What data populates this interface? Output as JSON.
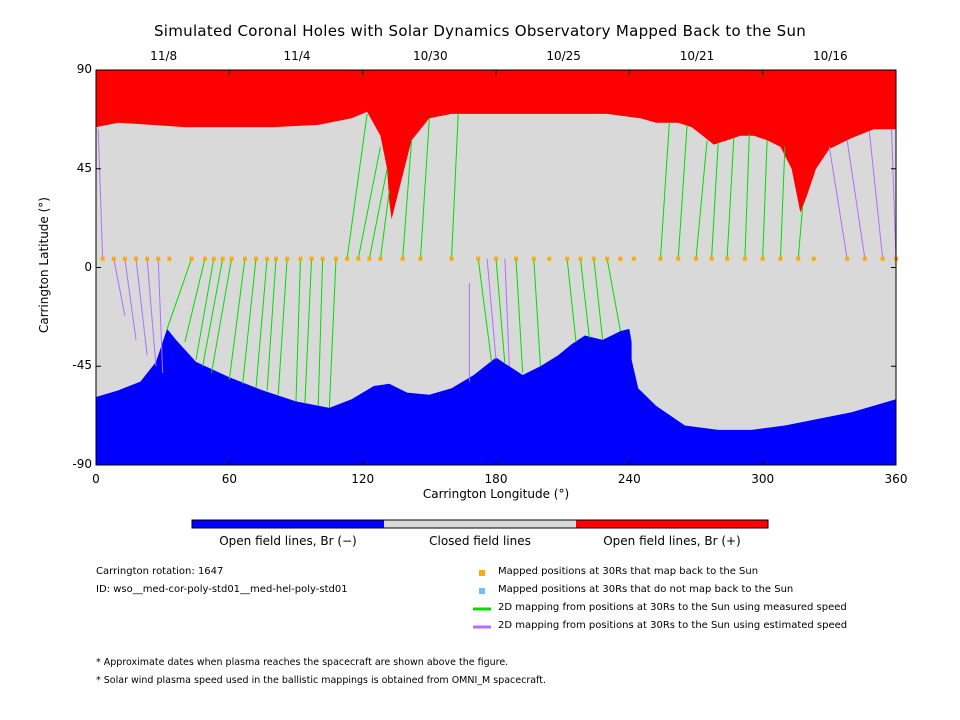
{
  "chart_data": {
    "type": "heatmap",
    "title": "Simulated Coronal Holes with Solar Dynamics Observatory Mapped Back to the Sun",
    "xlabel": "Carrington Longitude (°)",
    "ylabel": "Carrington Latitude (°)",
    "xlim": [
      0,
      360
    ],
    "ylim": [
      -90,
      90
    ],
    "x_ticks": [
      "0",
      "60",
      "120",
      "180",
      "240",
      "300",
      "360"
    ],
    "y_ticks": [
      "90",
      "45",
      "0",
      "-45",
      "-90"
    ],
    "top_axis": {
      "ticks": [
        {
          "label": "11/8",
          "lon": 30
        },
        {
          "label": "11/4",
          "lon": 90
        },
        {
          "label": "10/30",
          "lon": 150
        },
        {
          "label": "10/25",
          "lon": 210
        },
        {
          "label": "10/21",
          "lon": 270
        },
        {
          "label": "10/16",
          "lon": 330
        }
      ]
    },
    "colors": {
      "open_negative": "#0000ff",
      "closed": "#d9d9d9",
      "open_positive": "#ff0000",
      "measured_speed": "#00dd00",
      "estimated_speed": "#b070ff",
      "mapped_marker": "#ffaa00",
      "unmapped_marker": "#77bbff"
    },
    "north_boundary": [
      [
        0,
        64
      ],
      [
        10,
        66
      ],
      [
        25,
        65
      ],
      [
        40,
        64
      ],
      [
        60,
        64
      ],
      [
        80,
        64
      ],
      [
        100,
        65
      ],
      [
        115,
        68
      ],
      [
        122,
        71
      ],
      [
        128,
        60
      ],
      [
        131,
        45
      ],
      [
        132,
        30
      ],
      [
        133,
        22
      ],
      [
        137,
        38
      ],
      [
        142,
        58
      ],
      [
        150,
        68
      ],
      [
        160,
        70
      ],
      [
        172,
        70
      ],
      [
        185,
        70
      ],
      [
        200,
        70
      ],
      [
        215,
        70
      ],
      [
        230,
        70
      ],
      [
        245,
        68
      ],
      [
        252,
        66
      ],
      [
        262,
        66
      ],
      [
        268,
        64
      ],
      [
        273,
        60
      ],
      [
        278,
        56
      ],
      [
        284,
        58
      ],
      [
        290,
        60
      ],
      [
        296,
        60
      ],
      [
        302,
        58
      ],
      [
        308,
        55
      ],
      [
        313,
        45
      ],
      [
        316,
        30
      ],
      [
        317,
        25
      ],
      [
        320,
        33
      ],
      [
        324,
        45
      ],
      [
        330,
        54
      ],
      [
        340,
        59
      ],
      [
        350,
        63
      ],
      [
        360,
        63
      ]
    ],
    "south_boundary": [
      [
        0,
        -59
      ],
      [
        10,
        -56
      ],
      [
        20,
        -52
      ],
      [
        27,
        -43
      ],
      [
        32,
        -28
      ],
      [
        36,
        -33
      ],
      [
        45,
        -43
      ],
      [
        60,
        -50
      ],
      [
        75,
        -56
      ],
      [
        90,
        -61
      ],
      [
        105,
        -64
      ],
      [
        115,
        -60
      ],
      [
        125,
        -54
      ],
      [
        132,
        -53
      ],
      [
        140,
        -57
      ],
      [
        150,
        -58
      ],
      [
        160,
        -55
      ],
      [
        170,
        -49
      ],
      [
        180,
        -41
      ],
      [
        186,
        -45
      ],
      [
        192,
        -49
      ],
      [
        200,
        -45
      ],
      [
        208,
        -40
      ],
      [
        214,
        -35
      ],
      [
        220,
        -31
      ],
      [
        228,
        -33
      ],
      [
        236,
        -29
      ],
      [
        240,
        -28
      ],
      [
        241,
        -34
      ],
      [
        241,
        -42
      ],
      [
        244,
        -55
      ],
      [
        252,
        -63
      ],
      [
        265,
        -72
      ],
      [
        280,
        -74
      ],
      [
        295,
        -74
      ],
      [
        310,
        -72
      ],
      [
        325,
        -69
      ],
      [
        340,
        -66
      ],
      [
        350,
        -63
      ],
      [
        360,
        -60
      ]
    ],
    "mapped_points": {
      "lons": [
        3,
        8,
        13,
        18,
        23,
        28,
        33,
        43,
        49,
        53,
        57,
        61,
        67,
        72,
        77,
        81,
        86,
        92,
        97,
        102,
        108,
        113,
        118,
        123,
        128,
        138,
        146,
        160,
        172,
        180,
        189,
        197,
        204,
        212,
        218,
        224,
        230,
        236,
        242,
        254,
        262,
        270,
        277,
        284,
        292,
        300,
        308,
        316,
        323,
        338,
        346,
        354,
        360
      ],
      "lat": 4
    },
    "measured_mappings": [
      [
        43,
        4,
        32,
        -28
      ],
      [
        49,
        4,
        40,
        -34
      ],
      [
        53,
        4,
        45,
        -42
      ],
      [
        57,
        4,
        48,
        -45
      ],
      [
        61,
        4,
        52,
        -48
      ],
      [
        67,
        4,
        60,
        -51
      ],
      [
        72,
        4,
        66,
        -53
      ],
      [
        77,
        4,
        72,
        -55
      ],
      [
        81,
        4,
        77,
        -56
      ],
      [
        86,
        4,
        82,
        -58
      ],
      [
        92,
        4,
        90,
        -61
      ],
      [
        97,
        4,
        94,
        -62
      ],
      [
        102,
        4,
        100,
        -63
      ],
      [
        108,
        4,
        105,
        -64
      ],
      [
        113,
        4,
        122,
        70
      ],
      [
        118,
        4,
        128,
        55
      ],
      [
        123,
        4,
        131,
        45
      ],
      [
        128,
        4,
        132,
        35
      ],
      [
        138,
        4,
        142,
        58
      ],
      [
        146,
        4,
        150,
        68
      ],
      [
        160,
        4,
        163,
        70
      ],
      [
        172,
        4,
        178,
        -43
      ],
      [
        180,
        4,
        184,
        -44
      ],
      [
        189,
        4,
        192,
        -48
      ],
      [
        197,
        4,
        200,
        -45
      ],
      [
        212,
        4,
        216,
        -34
      ],
      [
        218,
        4,
        222,
        -32
      ],
      [
        224,
        4,
        228,
        -33
      ],
      [
        230,
        4,
        236,
        -29
      ],
      [
        254,
        4,
        258,
        66
      ],
      [
        262,
        4,
        266,
        65
      ],
      [
        270,
        4,
        275,
        58
      ],
      [
        277,
        4,
        280,
        57
      ],
      [
        284,
        4,
        287,
        59
      ],
      [
        292,
        4,
        294,
        61
      ],
      [
        300,
        4,
        302,
        58
      ],
      [
        308,
        4,
        310,
        55
      ],
      [
        316,
        4,
        318,
        28
      ]
    ],
    "estimated_mappings": [
      [
        3,
        4,
        1,
        63
      ],
      [
        8,
        4,
        13,
        -22
      ],
      [
        13,
        4,
        18,
        -33
      ],
      [
        18,
        4,
        23,
        -40
      ],
      [
        23,
        4,
        27,
        -45
      ],
      [
        28,
        4,
        30,
        -48
      ],
      [
        168,
        -7,
        168,
        -52
      ],
      [
        176,
        4,
        180,
        -42
      ],
      [
        184,
        4,
        186,
        -45
      ],
      [
        338,
        4,
        330,
        55
      ],
      [
        346,
        4,
        338,
        58
      ],
      [
        354,
        4,
        348,
        62
      ],
      [
        360,
        4,
        358,
        63
      ]
    ],
    "colorbar": {
      "labels": [
        "Open field lines, Br (−)",
        "Closed field lines",
        "Open field lines, Br (+)"
      ]
    },
    "info": {
      "carrington_rotation": "Carrington rotation: 1647",
      "model_id": "ID: wso__med-cor-poly-std01__med-hel-poly-std01"
    },
    "legend": [
      {
        "kind": "marker",
        "color": "#ffaa00",
        "label": "Mapped positions at 30Rs that map back to the Sun"
      },
      {
        "kind": "marker",
        "color": "#77bbff",
        "label": "Mapped positions at 30Rs that do not map back to the Sun"
      },
      {
        "kind": "line",
        "color": "#00dd00",
        "label": "2D mapping from positions at 30Rs to the Sun using measured speed"
      },
      {
        "kind": "line",
        "color": "#b070ff",
        "label": "2D mapping from positions at 30Rs to the Sun using estimated speed"
      }
    ],
    "notes": [
      "* Approximate dates when plasma reaches the spacecraft are shown above the figure.",
      "* Solar wind plasma speed used in the ballistic mappings is obtained from OMNI_M spacecraft."
    ]
  }
}
